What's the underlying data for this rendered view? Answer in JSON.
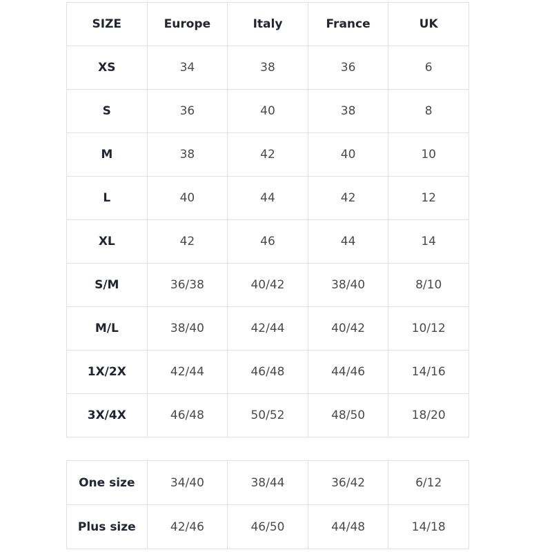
{
  "main_table": {
    "headers": [
      "SIZE",
      "Europe",
      "Italy",
      "France",
      "UK"
    ],
    "rows": [
      [
        "XS",
        "34",
        "38",
        "36",
        "6"
      ],
      [
        "S",
        "36",
        "40",
        "38",
        "8"
      ],
      [
        "M",
        "38",
        "42",
        "40",
        "10"
      ],
      [
        "L",
        "40",
        "44",
        "42",
        "12"
      ],
      [
        "XL",
        "42",
        "46",
        "44",
        "14"
      ],
      [
        "S/M",
        "36/38",
        "40/42",
        "38/40",
        "8/10"
      ],
      [
        "M/L",
        "38/40",
        "42/44",
        "40/42",
        "10/12"
      ],
      [
        "1X/2X",
        "42/44",
        "46/48",
        "44/46",
        "14/16"
      ],
      [
        "3X/4X",
        "46/48",
        "50/52",
        "48/50",
        "18/20"
      ]
    ]
  },
  "extra_table": {
    "rows": [
      [
        "One size",
        "34/40",
        "38/44",
        "36/42",
        "6/12"
      ],
      [
        "Plus size",
        "42/46",
        "46/50",
        "44/48",
        "14/18"
      ]
    ]
  },
  "colors": {
    "border": "#e2e2e2",
    "header_text": "#222433",
    "cell_text": "#4a4a4a"
  }
}
